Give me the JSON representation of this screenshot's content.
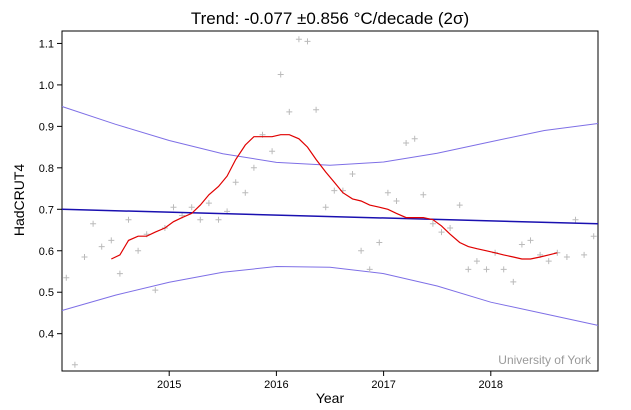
{
  "chart_data": {
    "type": "scatter",
    "title": "Trend: -0.077 ±0.856 °C/decade (2σ)",
    "xlabel": "Year",
    "ylabel": "HadCRUT4",
    "credit": "University of York",
    "xlim": [
      2014.0,
      2019.0
    ],
    "ylim": [
      0.31,
      1.13
    ],
    "xticks": [
      2015,
      2016,
      2017,
      2018
    ],
    "yticks": [
      0.4,
      0.5,
      0.6,
      0.7,
      0.8,
      0.9,
      1.0,
      1.1
    ],
    "ytick_labels": [
      "0.4",
      "0.5",
      "0.6",
      "0.7",
      "0.8",
      "0.9",
      "1.0",
      "1.1"
    ],
    "colors": {
      "points": "#bbbbbb",
      "smooth": "#e00000",
      "trend": "#1a10b0",
      "interval": "#7e6fe6",
      "credit": "#9a9a9a"
    },
    "series": [
      {
        "name": "Monthly anomaly",
        "kind": "scatter",
        "x": [
          2014.04,
          2014.12,
          2014.21,
          2014.29,
          2014.37,
          2014.46,
          2014.54,
          2014.62,
          2014.71,
          2014.79,
          2014.87,
          2014.96,
          2015.04,
          2015.12,
          2015.21,
          2015.29,
          2015.37,
          2015.46,
          2015.54,
          2015.62,
          2015.71,
          2015.79,
          2015.87,
          2015.96,
          2016.04,
          2016.12,
          2016.21,
          2016.29,
          2016.37,
          2016.46,
          2016.54,
          2016.62,
          2016.71,
          2016.79,
          2016.87,
          2016.96,
          2017.04,
          2017.12,
          2017.21,
          2017.29,
          2017.37,
          2017.46,
          2017.54,
          2017.62,
          2017.71,
          2017.79,
          2017.87,
          2017.96,
          2018.04,
          2018.12,
          2018.21,
          2018.29,
          2018.37,
          2018.46,
          2018.54,
          2018.62,
          2018.71,
          2018.79,
          2018.87,
          2018.96
        ],
        "y": [
          0.535,
          0.325,
          0.585,
          0.665,
          0.61,
          0.625,
          0.545,
          0.675,
          0.6,
          0.64,
          0.505,
          0.655,
          0.705,
          0.685,
          0.705,
          0.675,
          0.715,
          0.675,
          0.695,
          0.765,
          0.74,
          0.8,
          0.88,
          0.84,
          1.025,
          0.935,
          1.11,
          1.105,
          0.94,
          0.705,
          0.745,
          0.745,
          0.785,
          0.6,
          0.555,
          0.62,
          0.74,
          0.72,
          0.86,
          0.87,
          0.735,
          0.665,
          0.645,
          0.655,
          0.71,
          0.555,
          0.575,
          0.555,
          0.595,
          0.555,
          0.525,
          0.615,
          0.625,
          0.59,
          0.575,
          0.595,
          0.585,
          0.675,
          0.59,
          0.635
        ]
      },
      {
        "name": "12-month running mean",
        "kind": "line",
        "x": [
          2014.46,
          2014.54,
          2014.62,
          2014.71,
          2014.79,
          2014.87,
          2014.96,
          2015.04,
          2015.12,
          2015.21,
          2015.29,
          2015.37,
          2015.46,
          2015.54,
          2015.62,
          2015.71,
          2015.79,
          2015.87,
          2015.96,
          2016.04,
          2016.12,
          2016.21,
          2016.29,
          2016.37,
          2016.46,
          2016.54,
          2016.62,
          2016.71,
          2016.79,
          2016.87,
          2016.96,
          2017.04,
          2017.12,
          2017.21,
          2017.29,
          2017.37,
          2017.46,
          2017.54,
          2017.62,
          2017.71,
          2017.79,
          2017.87,
          2017.96,
          2018.04,
          2018.12,
          2018.21,
          2018.29,
          2018.37,
          2018.46,
          2018.54,
          2018.62
        ],
        "y": [
          0.58,
          0.59,
          0.625,
          0.635,
          0.635,
          0.645,
          0.655,
          0.67,
          0.68,
          0.69,
          0.71,
          0.735,
          0.755,
          0.78,
          0.82,
          0.855,
          0.875,
          0.875,
          0.875,
          0.88,
          0.88,
          0.87,
          0.85,
          0.82,
          0.79,
          0.765,
          0.74,
          0.725,
          0.72,
          0.71,
          0.705,
          0.7,
          0.69,
          0.68,
          0.68,
          0.68,
          0.675,
          0.66,
          0.64,
          0.62,
          0.61,
          0.605,
          0.6,
          0.595,
          0.59,
          0.585,
          0.58,
          0.58,
          0.585,
          0.59,
          0.595
        ]
      },
      {
        "name": "Linear trend",
        "kind": "line",
        "x": [
          2014.0,
          2019.0
        ],
        "y": [
          0.7,
          0.665
        ]
      },
      {
        "name": "Upper 2σ bound",
        "kind": "line",
        "x": [
          2014.0,
          2014.5,
          2015.0,
          2015.5,
          2016.0,
          2016.5,
          2017.0,
          2017.5,
          2018.0,
          2018.5,
          2019.0
        ],
        "y": [
          0.948,
          0.905,
          0.866,
          0.834,
          0.813,
          0.806,
          0.814,
          0.835,
          0.863,
          0.89,
          0.907
        ]
      },
      {
        "name": "Lower 2σ bound",
        "kind": "line",
        "x": [
          2014.0,
          2014.5,
          2015.0,
          2015.5,
          2016.0,
          2016.5,
          2017.0,
          2017.5,
          2018.0,
          2018.5,
          2019.0
        ],
        "y": [
          0.456,
          0.493,
          0.524,
          0.548,
          0.562,
          0.56,
          0.545,
          0.515,
          0.476,
          0.448,
          0.42
        ]
      }
    ]
  }
}
